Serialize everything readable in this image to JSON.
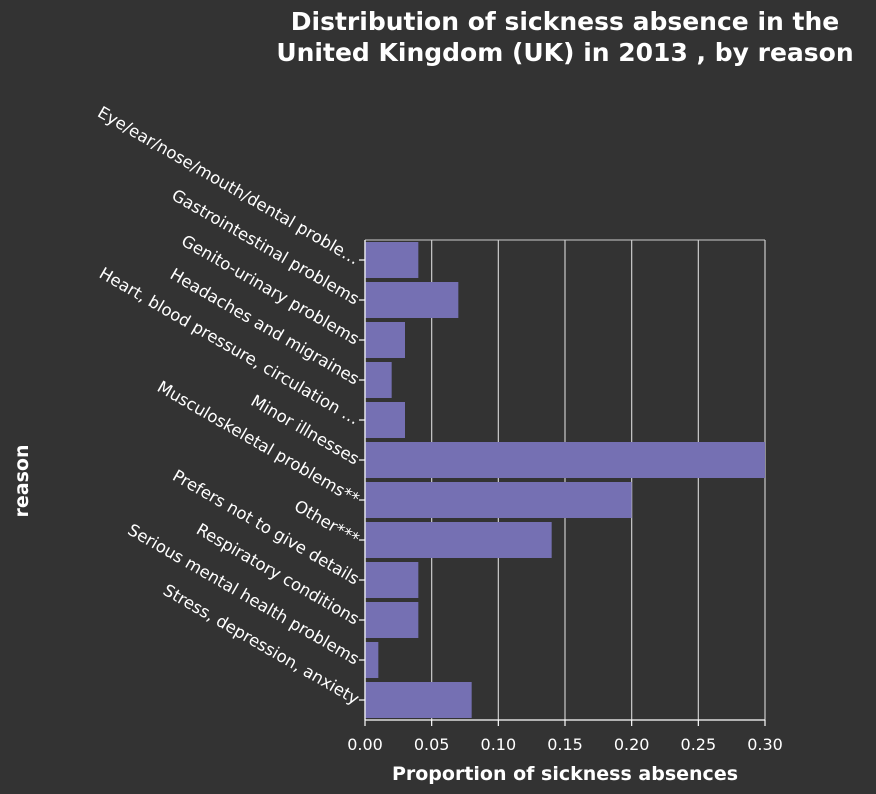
{
  "chart_data": {
    "type": "bar",
    "orientation": "horizontal",
    "title": "Distribution of sickness absence in the United Kingdom (UK) in 2013 , by reason",
    "title_lines": [
      "Distribution of sickness absence in the",
      "United Kingdom (UK) in 2013 , by reason"
    ],
    "xlabel": "Proportion of sickness absences",
    "ylabel": "reason",
    "xlim": [
      0,
      0.3
    ],
    "xticks": [
      0.0,
      0.05,
      0.1,
      0.15,
      0.2,
      0.25,
      0.3
    ],
    "xtick_labels": [
      "0.00",
      "0.05",
      "0.10",
      "0.15",
      "0.20",
      "0.25",
      "0.30"
    ],
    "grid": "vertical",
    "categories": [
      "Eye/ear/nose/mouth/dental proble…",
      "Gastrointestinal problems",
      "Genito-urinary problems",
      "Headaches and migraines",
      "Heart, blood pressure, circulation …",
      "Minor illnesses",
      "Musculoskeletal problems**",
      "Other***",
      "Prefers not to give details",
      "Respiratory conditions",
      "Serious mental health problems",
      "Stress, depression, anxiety"
    ],
    "values": [
      0.04,
      0.07,
      0.03,
      0.02,
      0.03,
      0.3,
      0.2,
      0.14,
      0.04,
      0.04,
      0.01,
      0.08
    ],
    "colors": {
      "background": "#333333",
      "bar": "#7570b3",
      "grid": "#cccccc",
      "text": "#ffffff"
    }
  }
}
